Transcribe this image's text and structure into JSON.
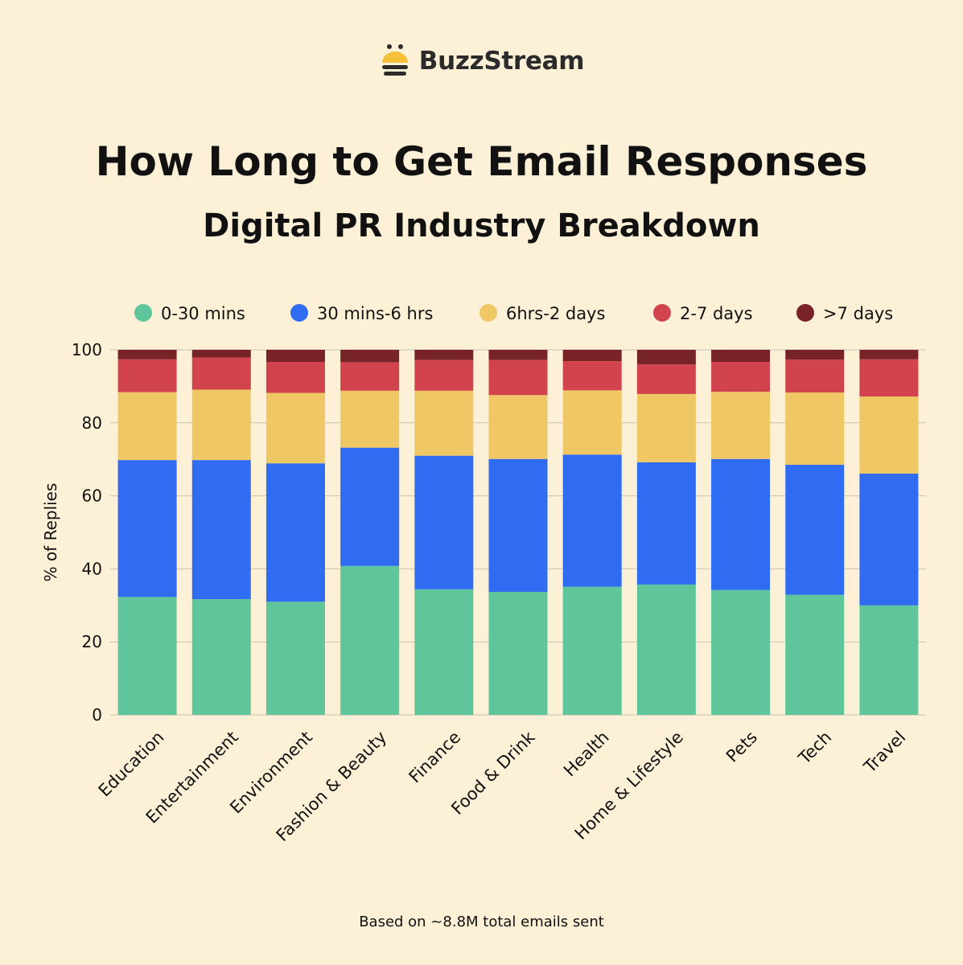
{
  "brand": {
    "name": "BuzzStream",
    "logo_icon": "bee-icon"
  },
  "header": {
    "title": "How Long to Get Email Responses",
    "subtitle_bold": "Digital PR",
    "subtitle_rest": " Industry Breakdown"
  },
  "footer": {
    "note": "Based on ~8.8M total emails sent"
  },
  "colors": {
    "background": "#fcf1d6",
    "grid": "#c9c2b2"
  },
  "chart_data": {
    "type": "bar",
    "stacked": true,
    "title": "How Long to Get Email Responses",
    "xlabel": "",
    "ylabel": "% of Replies",
    "ylim": [
      0,
      100
    ],
    "yticks": [
      0,
      20,
      40,
      60,
      80,
      100
    ],
    "grid": true,
    "legend_position": "top",
    "categories": [
      "Education",
      "Entertainment",
      "Environment",
      "Fashion & Beauty",
      "Finance",
      "Food & Drink",
      "Health",
      "Home & Lifestyle",
      "Pets",
      "Tech",
      "Travel"
    ],
    "series": [
      {
        "name": "0-30 mins",
        "color": "#5ec69a",
        "values": [
          32.3,
          31.7,
          31.0,
          40.8,
          34.4,
          33.7,
          35.1,
          35.7,
          34.2,
          32.9,
          30.0
        ]
      },
      {
        "name": "30 mins-6 hrs",
        "color": "#306cf1",
        "values": [
          37.5,
          38.1,
          37.9,
          32.4,
          36.6,
          36.4,
          36.2,
          33.5,
          35.9,
          35.6,
          36.1
        ]
      },
      {
        "name": "6hrs-2 days",
        "color": "#f0c765",
        "values": [
          18.6,
          19.3,
          19.3,
          15.6,
          17.8,
          17.5,
          17.6,
          18.7,
          18.4,
          19.8,
          21.1
        ]
      },
      {
        "name": "2-7 days",
        "color": "#d1444e",
        "values": [
          9.0,
          8.8,
          8.5,
          7.8,
          8.4,
          9.6,
          8.0,
          8.1,
          8.2,
          9.0,
          10.2
        ]
      },
      {
        "name": ">7 days",
        "color": "#772328",
        "values": [
          2.6,
          2.1,
          3.3,
          3.4,
          2.8,
          2.8,
          3.1,
          4.0,
          3.3,
          2.7,
          2.6
        ]
      }
    ]
  }
}
